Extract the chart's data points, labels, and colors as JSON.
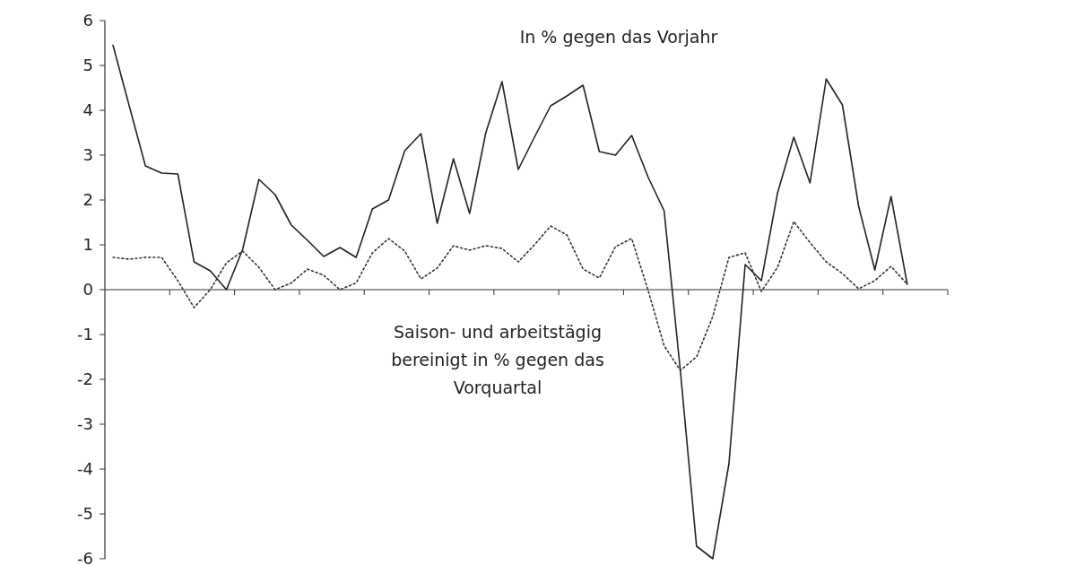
{
  "chart_data": {
    "type": "line",
    "categories": [
      null,
      null,
      null,
      null,
      null,
      null,
      null,
      null,
      null,
      null,
      null,
      null,
      null,
      null,
      null,
      null,
      null,
      null,
      null,
      null,
      null,
      null,
      null,
      null,
      null,
      null,
      null,
      null,
      null,
      null,
      null,
      null,
      null,
      null,
      null,
      null,
      null,
      null,
      null,
      null,
      null,
      null,
      null,
      null,
      null,
      null,
      null,
      null,
      null,
      null,
      null,
      null
    ],
    "series": [
      {
        "name": "In % gegen das Vorjahr",
        "color": "#222222",
        "line_style": "solid",
        "values": [
          5.45,
          4.1,
          2.76,
          2.6,
          2.58,
          0.62,
          0.42,
          0,
          0.9,
          2.46,
          2.12,
          1.44,
          1.1,
          0.74,
          0.94,
          0.72,
          1.8,
          2.0,
          3.1,
          3.48,
          1.48,
          2.92,
          1.7,
          3.5,
          4.64,
          2.68,
          3.4,
          4.1,
          4.32,
          4.56,
          3.08,
          3.0,
          3.44,
          2.52,
          1.76,
          -1.8,
          -5.72,
          -6.0,
          -3.88,
          0.56,
          0.2,
          2.16,
          3.4,
          2.38,
          4.7,
          4.12,
          1.86,
          0.44,
          2.08,
          0.12,
          null,
          null
        ]
      },
      {
        "name": "Saison- und arbeitstägig bereinigt in % gegen das Vorquartal",
        "color": "#333333",
        "line_style": "dotted",
        "values": [
          0.72,
          0.68,
          0.72,
          0.72,
          0.2,
          -0.4,
          0,
          0.6,
          0.86,
          0.5,
          0,
          0.15,
          0.46,
          0.32,
          0,
          0.15,
          0.82,
          1.14,
          0.86,
          0.24,
          0.48,
          0.98,
          0.88,
          0.98,
          0.92,
          0.62,
          1.0,
          1.42,
          1.22,
          0.46,
          0.26,
          0.96,
          1.14,
          0,
          -1.25,
          -1.8,
          -1.5,
          -0.6,
          0.72,
          0.82,
          -0.04,
          0.5,
          1.52,
          1.05,
          0.62,
          0.36,
          0.02,
          0.2,
          0.52,
          0.12,
          null,
          null
        ]
      }
    ],
    "ylim": [
      -6,
      6
    ],
    "yticks": [
      -6,
      -5,
      -4,
      -3,
      -2,
      -1,
      0,
      1,
      2,
      3,
      4,
      5,
      6
    ],
    "marker": "none"
  }
}
